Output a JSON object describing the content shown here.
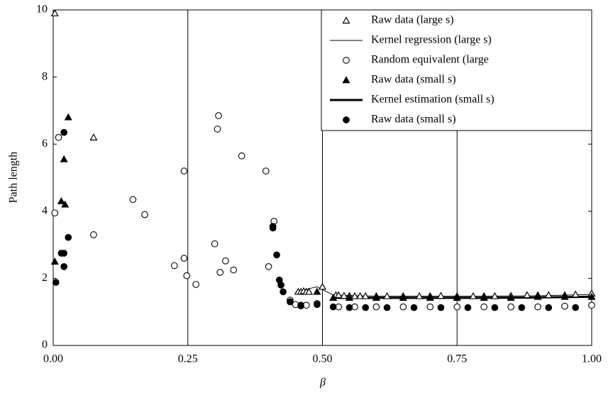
{
  "chart_data": {
    "type": "scatter",
    "x_label": "β",
    "y_label": "Path length",
    "xlim": [
      0,
      1
    ],
    "ylim": [
      0,
      10
    ],
    "xticks": [
      {
        "value": 0,
        "label": "0.00"
      },
      {
        "value": 0.25,
        "label": "0.25"
      },
      {
        "value": 0.5,
        "label": "0.50"
      },
      {
        "value": 0.75,
        "label": "0.75"
      },
      {
        "value": 1,
        "label": "1.00"
      }
    ],
    "yticks": [
      0,
      2,
      4,
      6,
      8,
      10
    ],
    "grid": "x",
    "legend": "upper right",
    "series": [
      {
        "name": "Raw data (large s)",
        "color": "#000000",
        "marker": "triangle-open",
        "x": [
          0.003,
          0.075,
          0.455,
          0.46,
          0.465,
          0.47,
          0.475,
          0.49,
          0.5,
          0.525,
          0.53,
          0.54,
          0.55,
          0.56,
          0.57,
          0.58,
          0.6,
          0.62,
          0.65,
          0.68,
          0.7,
          0.72,
          0.75,
          0.78,
          0.8,
          0.82,
          0.85,
          0.88,
          0.9,
          0.92,
          0.95,
          0.97,
          1.0
        ],
        "values": [
          9.9,
          6.2,
          1.6,
          1.6,
          1.62,
          1.6,
          1.6,
          1.6,
          1.75,
          1.5,
          1.5,
          1.48,
          1.48,
          1.47,
          1.47,
          1.47,
          1.47,
          1.47,
          1.47,
          1.47,
          1.47,
          1.48,
          1.47,
          1.47,
          1.47,
          1.47,
          1.48,
          1.5,
          1.5,
          1.5,
          1.5,
          1.52,
          1.55
        ]
      },
      {
        "name": "Kernel regression (large s)",
        "color": "#000000",
        "line": "thin",
        "x": [
          0.45,
          0.49,
          0.52,
          0.6,
          0.7,
          0.8,
          0.9,
          1.0
        ],
        "values": [
          1.6,
          1.75,
          1.5,
          1.47,
          1.47,
          1.47,
          1.48,
          1.52
        ]
      },
      {
        "name": "Random equivalent (large",
        "color": "#000000",
        "marker": "circle-open",
        "x": [
          0.003,
          0.01,
          0.075,
          0.148,
          0.17,
          0.225,
          0.243,
          0.243,
          0.248,
          0.265,
          0.3,
          0.305,
          0.307,
          0.31,
          0.32,
          0.335,
          0.35,
          0.395,
          0.4,
          0.41,
          0.44,
          0.45,
          0.46,
          0.47,
          0.49,
          0.53,
          0.56,
          0.6,
          0.65,
          0.7,
          0.75,
          0.8,
          0.85,
          0.9,
          0.95,
          1.0
        ],
        "values": [
          3.95,
          6.2,
          3.3,
          4.35,
          3.9,
          2.38,
          5.2,
          2.6,
          2.08,
          1.82,
          3.03,
          6.45,
          6.85,
          2.18,
          2.52,
          2.25,
          5.65,
          5.2,
          2.35,
          3.7,
          1.35,
          1.22,
          1.2,
          1.2,
          1.25,
          1.15,
          1.15,
          1.15,
          1.15,
          1.15,
          1.15,
          1.15,
          1.15,
          1.15,
          1.17,
          1.2
        ]
      },
      {
        "name": "Raw data (small s)",
        "color": "#000000",
        "marker": "triangle",
        "x": [
          0.003,
          0.015,
          0.02,
          0.022,
          0.028,
          0.49,
          0.52,
          0.55,
          0.6,
          0.65,
          0.7,
          0.75,
          0.8,
          0.85,
          0.9,
          0.95,
          1.0
        ],
        "values": [
          2.5,
          4.3,
          5.55,
          4.2,
          6.8,
          1.6,
          1.42,
          1.42,
          1.42,
          1.42,
          1.42,
          1.42,
          1.42,
          1.42,
          1.45,
          1.45,
          1.45
        ]
      },
      {
        "name": "Kernel estimation (small s)",
        "color": "#000000",
        "line": "thick",
        "x": [
          0.52,
          0.6,
          0.7,
          0.8,
          0.9,
          1.0
        ],
        "values": [
          1.42,
          1.42,
          1.42,
          1.42,
          1.43,
          1.45
        ]
      },
      {
        "name": "Raw data (small s)",
        "color": "#000000",
        "marker": "circle",
        "x": [
          0.005,
          0.015,
          0.02,
          0.02,
          0.02,
          0.028,
          0.408,
          0.408,
          0.415,
          0.42,
          0.423,
          0.427,
          0.44,
          0.46,
          0.49,
          0.52,
          0.55,
          0.58,
          0.62,
          0.67,
          0.72,
          0.77,
          0.82,
          0.87,
          0.92,
          0.97
        ],
        "values": [
          1.88,
          2.75,
          2.75,
          2.35,
          6.35,
          3.22,
          3.5,
          3.55,
          2.7,
          1.95,
          1.8,
          1.6,
          1.3,
          1.18,
          1.22,
          1.15,
          1.13,
          1.13,
          1.13,
          1.13,
          1.13,
          1.13,
          1.13,
          1.13,
          1.13,
          1.13
        ]
      }
    ]
  }
}
